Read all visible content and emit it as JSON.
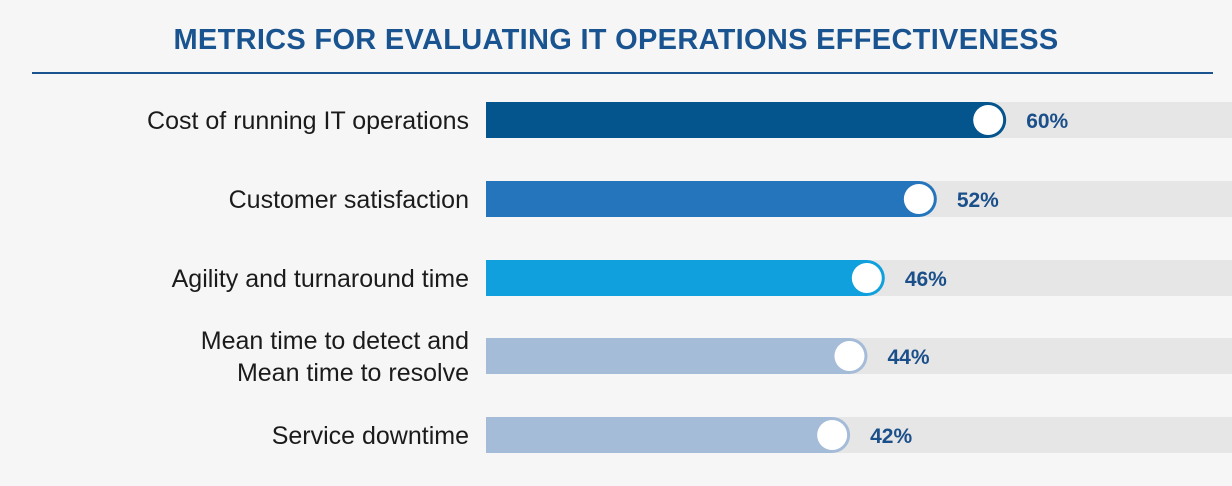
{
  "title": "METRICS FOR EVALUATING IT OPERATIONS EFFECTIVENESS",
  "colors": {
    "title": "#1a5490",
    "rule": "#1a5490",
    "track": "#e6e6e6",
    "value_text": "#1b4f8a",
    "knob": "#ffffff"
  },
  "chart_data": {
    "type": "bar",
    "orientation": "horizontal",
    "title": "METRICS FOR EVALUATING IT OPERATIONS EFFECTIVENESS",
    "categories": [
      [
        "Cost of running IT operations"
      ],
      [
        "Customer satisfaction"
      ],
      [
        "Agility and turnaround time"
      ],
      [
        "Mean time to detect and",
        "Mean time to resolve"
      ],
      [
        "Service downtime"
      ]
    ],
    "values": [
      60,
      52,
      46,
      44,
      42
    ],
    "value_labels": [
      "60%",
      "52%",
      "46%",
      "44%",
      "42%"
    ],
    "bar_colors": [
      "#04548d",
      "#2575bd",
      "#0fa0dd",
      "#a5bcd9",
      "#a5bcd9"
    ],
    "value_unit": "%",
    "grid": false,
    "legend": "none"
  }
}
